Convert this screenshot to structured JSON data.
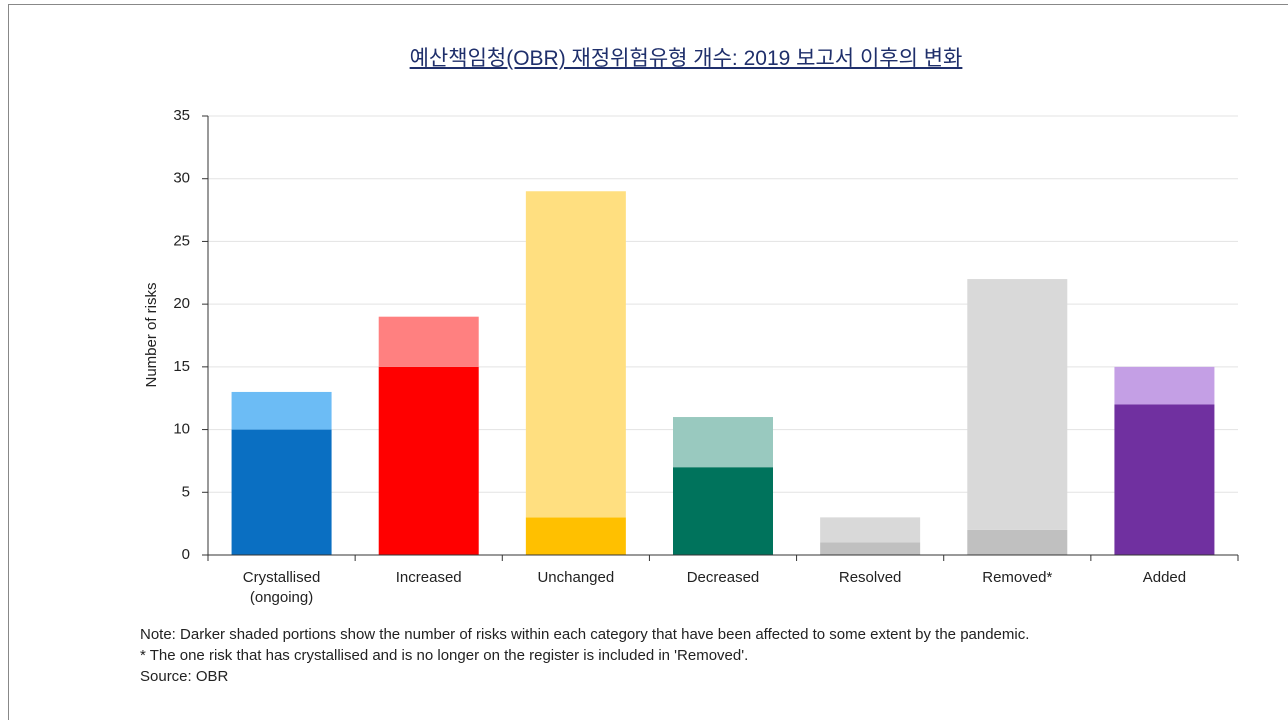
{
  "chart_data": {
    "type": "stacked-bar",
    "title": "예산책임청(OBR) 재정위험유형 개수: 2019 보고서 이후의 변화",
    "y_label": "Number of risks",
    "categories": [
      "Crystallised\n(ongoing)",
      "Increased",
      "Unchanged",
      "Decreased",
      "Resolved",
      "Removed*",
      "Added"
    ],
    "series": [
      {
        "colors": [
          "#0a6fc2",
          "#ff0000",
          "#ffc000",
          "#00735c",
          "#c0c0c0",
          "#c0c0c0",
          "#7030a0"
        ],
        "values": [
          10,
          15,
          3,
          7,
          1,
          2,
          12
        ]
      },
      {
        "colors": [
          "#6cbcf5",
          "#ff8080",
          "#ffdf80",
          "#99c9bf",
          "#d9d9d9",
          "#d9d9d9",
          "#c49fe5"
        ],
        "values": [
          3,
          4,
          26,
          4,
          2,
          20,
          3
        ]
      }
    ],
    "ylim": [
      0,
      35
    ],
    "yticks": [
      0,
      5,
      10,
      15,
      20,
      25,
      30,
      35
    ],
    "grid": true,
    "notes": [
      "Note: Darker shaded portions show the number of risks within each category that have been affected to some extent by the pandemic.",
      "* The one risk that has crystallised and is no longer on the register is included in 'Removed'.",
      "Source: OBR"
    ]
  }
}
